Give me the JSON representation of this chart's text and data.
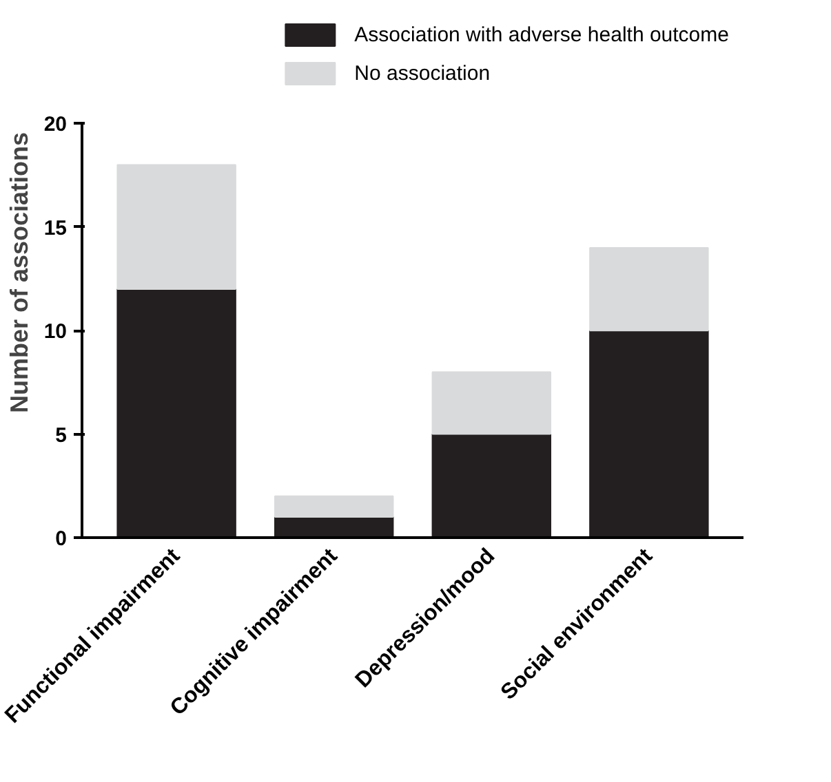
{
  "chart_data": {
    "type": "bar",
    "stacked": true,
    "ylabel": "Number of associations",
    "categories": [
      "Functional impairment",
      "Cognitive impairment",
      "Depression/mood",
      "Social environment"
    ],
    "series": [
      {
        "name": "Association with adverse health outcome",
        "color": "#231f20",
        "values": [
          12,
          1,
          5,
          10
        ]
      },
      {
        "name": "No association",
        "color": "#d9dadb",
        "values": [
          6,
          1,
          3,
          4
        ]
      }
    ],
    "ylim": [
      0,
      20
    ],
    "yticks": [
      0,
      5,
      10,
      15,
      20
    ],
    "grid": false,
    "legend": "top right"
  }
}
